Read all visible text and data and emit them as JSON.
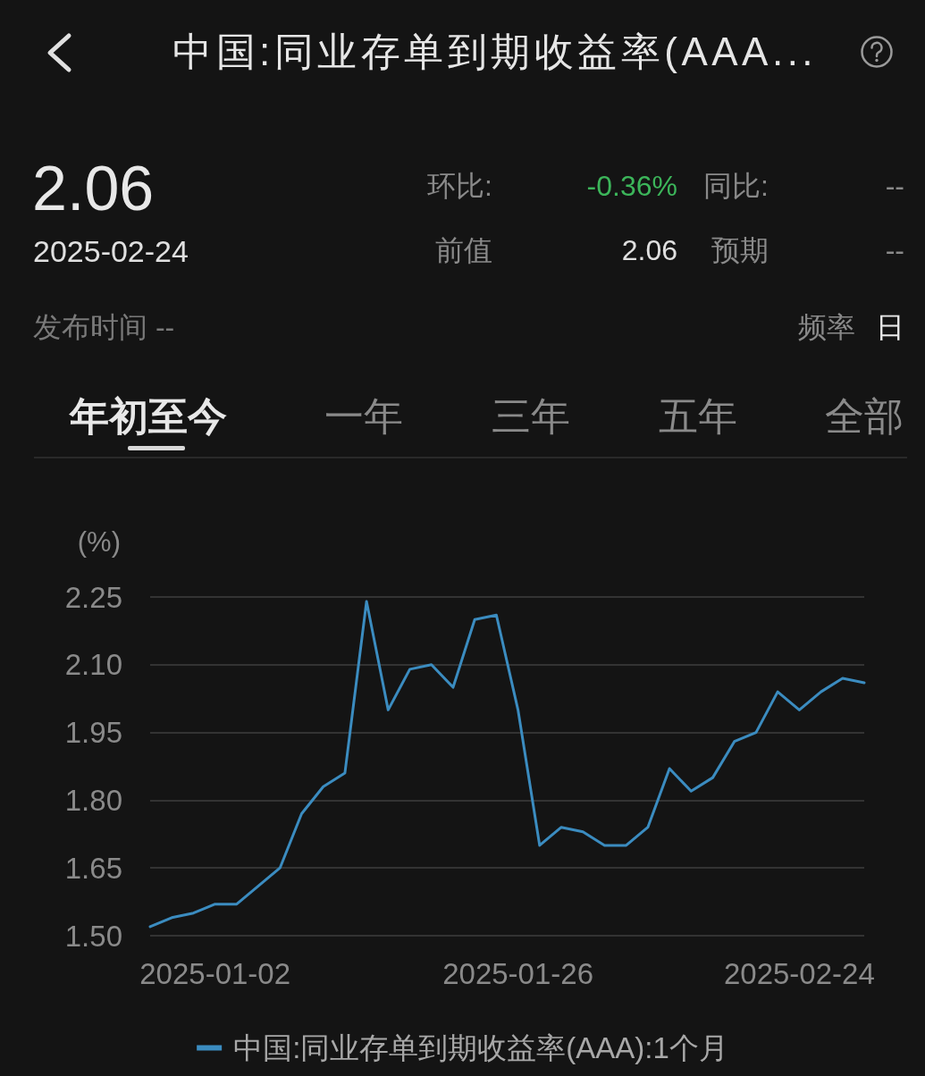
{
  "chart_data": {
    "type": "line",
    "title": "中国:同业存单到期收益率(AAA...",
    "ylabel": "(%)",
    "annotations": [
      "2.06",
      "2025-02-24",
      "环比:",
      "-0.36%",
      "同比:",
      "--",
      "前值",
      "2.06",
      "预期",
      "--",
      "发布时间 --",
      "频率",
      "日",
      "年初至今",
      "一年",
      "三年",
      "五年",
      "全部"
    ],
    "categories": [
      null,
      null,
      null,
      "2025-01-02",
      null,
      null,
      null,
      null,
      null,
      null,
      null,
      null,
      null,
      null,
      null,
      null,
      null,
      "2025-01-26",
      null,
      null,
      null,
      null,
      null,
      null,
      null,
      null,
      null,
      null,
      null,
      null,
      "2025-02-24",
      null,
      null,
      null
    ],
    "series": [
      {
        "name": "中国:同业存单到期收益率(AAA):1个月",
        "color": "#3b8cc0",
        "values": [
          1.52,
          1.54,
          1.55,
          1.57,
          1.57,
          1.61,
          1.65,
          1.77,
          1.83,
          1.86,
          2.24,
          2.0,
          2.09,
          2.1,
          2.05,
          2.2,
          2.21,
          2.0,
          1.7,
          1.74,
          1.73,
          1.7,
          1.7,
          1.74,
          1.87,
          1.82,
          1.85,
          1.93,
          1.95,
          2.04,
          2.0,
          2.04,
          2.07,
          2.06
        ]
      }
    ],
    "ylim": [
      1.5,
      2.25
    ],
    "yticks": [
      {
        "value": 1.5,
        "label": "1.50"
      },
      1.65,
      {
        "value": 1.8,
        "label": "1.80"
      },
      1.95,
      {
        "value": 2.1,
        "label": "2.10"
      },
      2.25
    ],
    "grid": "y",
    "legend": "bottom",
    "marker": "none",
    "line_style": "solid"
  }
}
